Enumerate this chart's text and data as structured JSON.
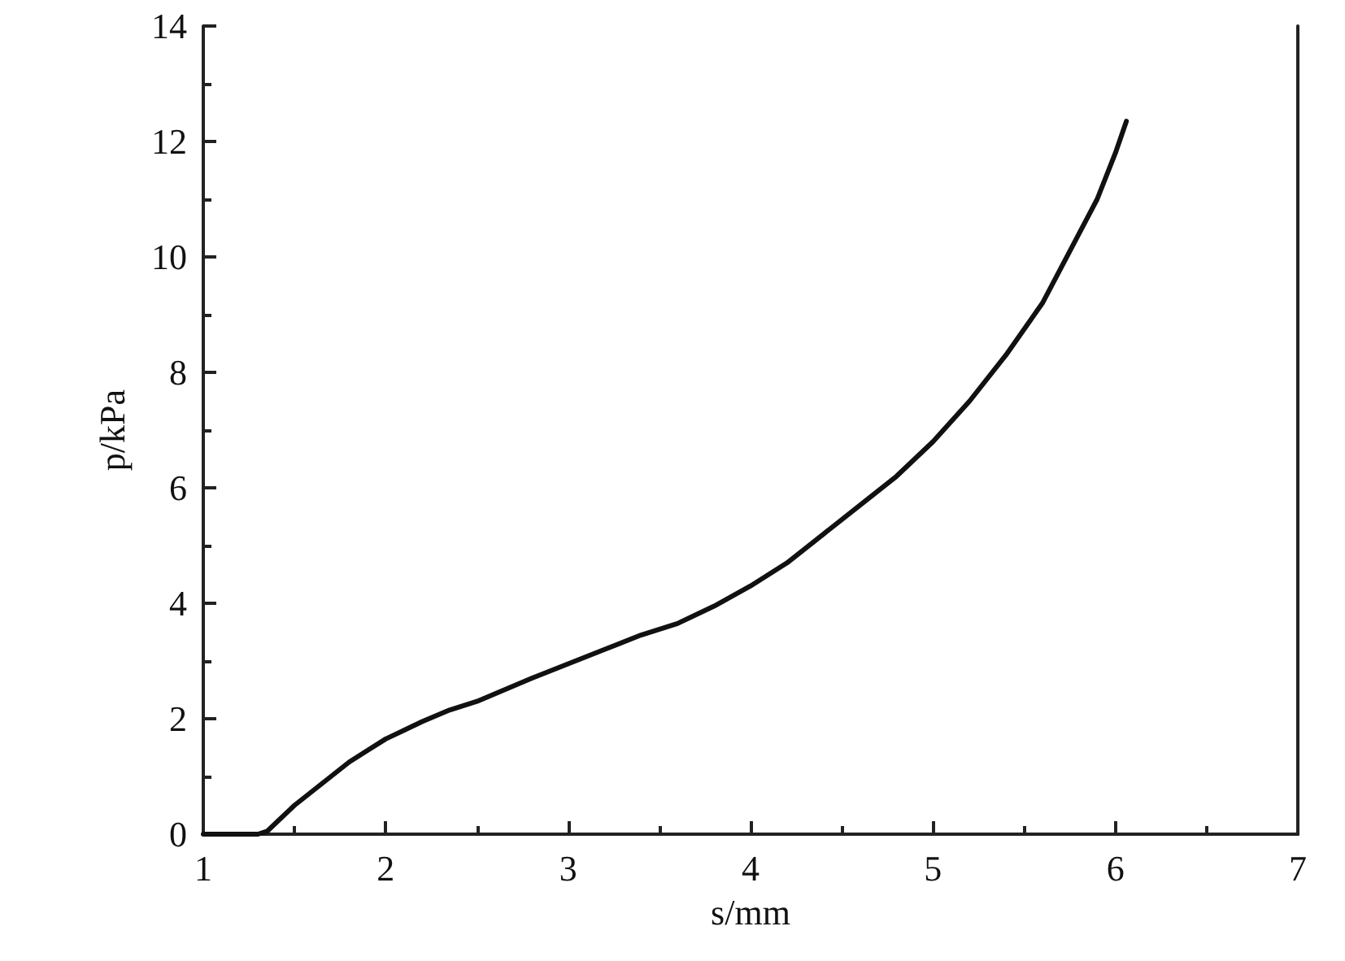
{
  "chart_data": {
    "type": "line",
    "xlabel": "s/mm",
    "ylabel": "p/kPa",
    "xlim": [
      1,
      7
    ],
    "xticks": [
      1,
      2,
      3,
      4,
      5,
      6,
      7
    ],
    "ylim": [
      0,
      14
    ],
    "yticks": [
      0,
      2,
      4,
      6,
      8,
      10,
      12,
      14
    ],
    "grid": false,
    "marker": "none",
    "line_style": "solid",
    "series": [
      {
        "color": "#111111",
        "x": [
          1.0,
          1.1,
          1.2,
          1.3,
          1.35,
          1.4,
          1.45,
          1.5,
          1.6,
          1.7,
          1.8,
          1.9,
          2.0,
          2.1,
          2.2,
          2.35,
          2.5,
          2.65,
          2.8,
          3.0,
          3.2,
          3.4,
          3.6,
          3.8,
          4.0,
          4.2,
          4.4,
          4.6,
          4.8,
          5.0,
          5.2,
          5.4,
          5.6,
          5.8,
          5.9,
          6.0,
          6.06
        ],
        "values": [
          0,
          0,
          0,
          0,
          0.05,
          0.2,
          0.35,
          0.5,
          0.75,
          1.0,
          1.25,
          1.45,
          1.65,
          1.8,
          1.95,
          2.15,
          2.3,
          2.5,
          2.7,
          2.95,
          3.2,
          3.45,
          3.65,
          3.95,
          4.3,
          4.7,
          5.2,
          5.7,
          6.2,
          6.8,
          7.5,
          8.3,
          9.2,
          10.4,
          11.0,
          11.8,
          12.35
        ]
      }
    ]
  }
}
